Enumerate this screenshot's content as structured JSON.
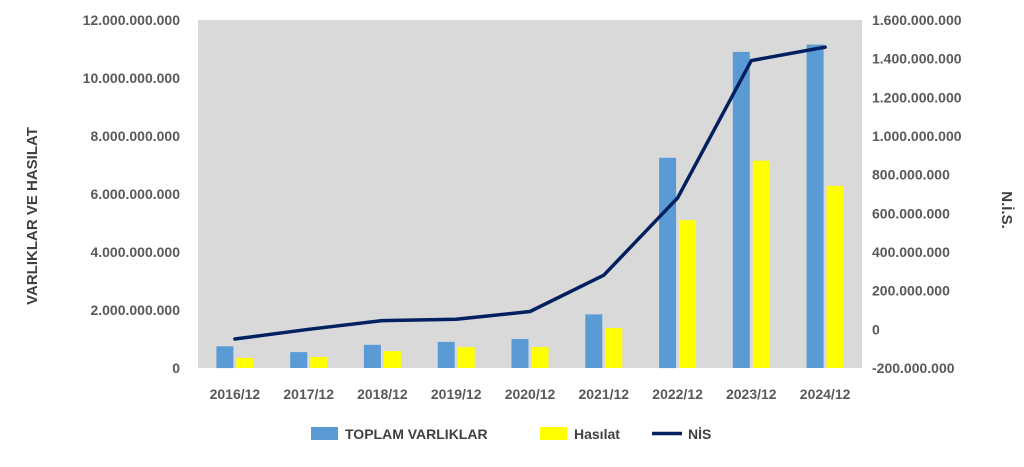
{
  "chart_data": {
    "type": "bar",
    "categories": [
      "2016/12",
      "2017/12",
      "2018/12",
      "2019/12",
      "2020/12",
      "2021/12",
      "2022/12",
      "2023/12",
      "2024/12"
    ],
    "series": [
      {
        "name": "TOPLAM VARLIKLAR",
        "type": "bar",
        "axis": "left",
        "color": "#5b9bd5",
        "values": [
          750000000,
          550000000,
          800000000,
          900000000,
          1000000000,
          1850000000,
          7250000000,
          10900000000,
          11150000000
        ]
      },
      {
        "name": "Hasılat",
        "type": "bar",
        "axis": "left",
        "color": "#ffff00",
        "values": [
          350000000,
          380000000,
          580000000,
          720000000,
          720000000,
          1380000000,
          5100000000,
          7150000000,
          6280000000
        ]
      },
      {
        "name": "NİS",
        "type": "line",
        "axis": "right",
        "color": "#002060",
        "values": [
          -50000000,
          0,
          45000000,
          52000000,
          92000000,
          280000000,
          680000000,
          1390000000,
          1460000000
        ]
      }
    ],
    "ylabel": "VARLIKLAR VE HASILAT",
    "y2label": "N.İ.S.",
    "ylim": [
      0,
      12000000000
    ],
    "y2lim": [
      -200000000,
      1600000000
    ],
    "yticks": [
      "0",
      "2.000.000.000",
      "4.000.000.000",
      "6.000.000.000",
      "8.000.000.000",
      "10.000.000.000",
      "12.000.000.000"
    ],
    "y2ticks": [
      "-200.000.000",
      "0",
      "200.000.000",
      "400.000.000",
      "600.000.000",
      "800.000.000",
      "1.000.000.000",
      "1.200.000.000",
      "1.400.000.000",
      "1.600.000.000"
    ],
    "grid": false,
    "plot_background": "#d9d9d9",
    "legend": "bottom"
  }
}
